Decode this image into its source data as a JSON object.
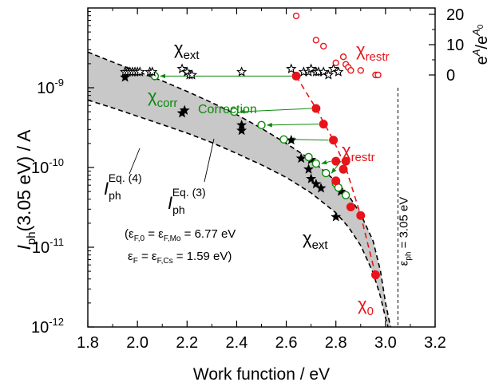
{
  "chart_data": {
    "type": "scatter",
    "xlabel": "Work function / eV",
    "ylabel": {
      "italic": "I",
      "sub": "ph",
      "rest": "(3.05 eV) / A"
    },
    "xlim": [
      1.8,
      3.2
    ],
    "ylim": [
      1e-12,
      1e-08
    ],
    "yscale": "log",
    "xticks": [
      "1.8",
      "2.0",
      "2.2",
      "2.4",
      "2.6",
      "2.8",
      "3.0",
      "3.2"
    ],
    "yticks": [
      {
        "value": 1e-12,
        "base": "10",
        "exp": "-12"
      },
      {
        "value": 1e-11,
        "base": "10",
        "exp": "-11"
      },
      {
        "value": 1e-10,
        "base": "10",
        "exp": "-10"
      },
      {
        "value": 1e-09,
        "base": "10",
        "exp": "-9"
      }
    ],
    "right_axis": {
      "label": {
        "base": "e",
        "sup1": "A",
        "mid": "/e",
        "sup2": "A",
        "sub2": "0"
      },
      "ylim": [
        -4.5,
        21
      ],
      "ticks": [
        "0",
        "10",
        "20"
      ],
      "tick_values": [
        0,
        10,
        20
      ]
    },
    "series": [
      {
        "name": "χ_ext",
        "label": {
          "base": "χ",
          "sub": "ext"
        },
        "marker": "star-filled",
        "color": "#000000",
        "points": [
          {
            "x": 1.95,
            "y": 1.35e-09
          },
          {
            "x": 2.18,
            "y": 4.8e-10
          },
          {
            "x": 2.19,
            "y": 5.2e-10
          },
          {
            "x": 2.42,
            "y": 3.4e-10
          },
          {
            "x": 2.42,
            "y": 2.9e-10
          },
          {
            "x": 2.62,
            "y": 2.2e-10
          },
          {
            "x": 2.66,
            "y": 1.3e-10
          },
          {
            "x": 2.69,
            "y": 9.5e-11
          },
          {
            "x": 2.7,
            "y": 7.2e-11
          },
          {
            "x": 2.72,
            "y": 6.2e-11
          },
          {
            "x": 2.74,
            "y": 5.5e-11
          },
          {
            "x": 2.8,
            "y": 2.4e-11
          },
          {
            "x": 2.82,
            "y": 5e-11
          },
          {
            "x": 2.7,
            "y": 1.25e-10
          }
        ]
      },
      {
        "name": "χ_corr",
        "label": {
          "base": "χ",
          "sub": "corr"
        },
        "marker": "circle-open",
        "color": "#0a8a0a",
        "points": [
          {
            "x": 2.07,
            "y": 1.4e-09
          },
          {
            "x": 2.39,
            "y": 5e-10
          },
          {
            "x": 2.5,
            "y": 3.4e-10
          },
          {
            "x": 2.59,
            "y": 2.25e-10
          },
          {
            "x": 2.69,
            "y": 1.35e-10
          },
          {
            "x": 2.72,
            "y": 1.12e-10
          },
          {
            "x": 2.76,
            "y": 8.5e-11
          },
          {
            "x": 2.8,
            "y": 6.3e-11
          },
          {
            "x": 2.81,
            "y": 5.6e-11
          },
          {
            "x": 2.84,
            "y": 4.5e-11
          }
        ]
      },
      {
        "name": "χ_restr",
        "label": {
          "base": "χ",
          "sub": "restr"
        },
        "marker": "circle-filled",
        "color": "#e8141a",
        "points": [
          {
            "x": 2.64,
            "y": 1.4e-09
          },
          {
            "x": 2.72,
            "y": 5.5e-10
          },
          {
            "x": 2.75,
            "y": 3.5e-10
          },
          {
            "x": 2.79,
            "y": 2.2e-10
          },
          {
            "x": 2.8,
            "y": 1.2e-10
          },
          {
            "x": 2.83,
            "y": 9.5e-11
          },
          {
            "x": 2.84,
            "y": 1.2e-10
          },
          {
            "x": 2.8,
            "y": 6.8e-11
          },
          {
            "x": 2.86,
            "y": 3.2e-11
          },
          {
            "x": 2.9,
            "y": 2.5e-11
          },
          {
            "x": 2.96,
            "y": 4.5e-12
          }
        ]
      },
      {
        "name": "χ_ext e^A/e^A0",
        "axis": "right",
        "marker": "star-open",
        "color": "#000000",
        "points": [
          {
            "x": 1.95,
            "y": 1
          },
          {
            "x": 1.96,
            "y": 1
          },
          {
            "x": 1.97,
            "y": 1
          },
          {
            "x": 1.98,
            "y": 1
          },
          {
            "x": 1.99,
            "y": 1
          },
          {
            "x": 2.0,
            "y": 1
          },
          {
            "x": 2.01,
            "y": 1
          },
          {
            "x": 2.05,
            "y": 1
          },
          {
            "x": 2.06,
            "y": 1
          },
          {
            "x": 2.18,
            "y": 2
          },
          {
            "x": 2.2,
            "y": 1
          },
          {
            "x": 2.21,
            "y": 0
          },
          {
            "x": 2.22,
            "y": 0
          },
          {
            "x": 2.42,
            "y": 1
          },
          {
            "x": 2.62,
            "y": 2
          },
          {
            "x": 2.67,
            "y": 1
          },
          {
            "x": 2.69,
            "y": 1
          },
          {
            "x": 2.7,
            "y": 2
          },
          {
            "x": 2.72,
            "y": 1
          },
          {
            "x": 2.73,
            "y": 1
          },
          {
            "x": 2.75,
            "y": 1
          },
          {
            "x": 2.77,
            "y": 0
          },
          {
            "x": 2.79,
            "y": 2
          },
          {
            "x": 2.81,
            "y": 1
          }
        ]
      },
      {
        "name": "χ_restr e^A/e^A0",
        "axis": "right",
        "marker": "circle-open",
        "color": "#e8141a",
        "points": [
          {
            "x": 2.64,
            "y": 19.5
          },
          {
            "x": 2.72,
            "y": 11.5
          },
          {
            "x": 2.75,
            "y": 9.5
          },
          {
            "x": 2.8,
            "y": 4
          },
          {
            "x": 2.83,
            "y": 6
          },
          {
            "x": 2.84,
            "y": 3.5
          },
          {
            "x": 2.85,
            "y": 2.5
          },
          {
            "x": 2.86,
            "y": 1.5
          },
          {
            "x": 2.9,
            "y": 1.5
          },
          {
            "x": 2.96,
            "y": 0
          },
          {
            "x": 2.97,
            "y": 0
          }
        ]
      }
    ],
    "bands": [
      {
        "name": "I_ph^Eq.(3)",
        "label": {
          "italic": "I",
          "sub": "ph",
          "sup": "Eq. (3)"
        },
        "line": "dashed",
        "points": [
          {
            "x": 1.8,
            "y": 2.8e-09
          },
          {
            "x": 1.9,
            "y": 2.1e-09
          },
          {
            "x": 2.0,
            "y": 1.6e-09
          },
          {
            "x": 2.1,
            "y": 1.22e-09
          },
          {
            "x": 2.2,
            "y": 9e-10
          },
          {
            "x": 2.3,
            "y": 6.5e-10
          },
          {
            "x": 2.4,
            "y": 4.6e-10
          },
          {
            "x": 2.5,
            "y": 3.1e-10
          },
          {
            "x": 2.6,
            "y": 2e-10
          },
          {
            "x": 2.7,
            "y": 1.25e-10
          },
          {
            "x": 2.8,
            "y": 6.7e-11
          },
          {
            "x": 2.85,
            "y": 4.5e-11
          },
          {
            "x": 2.9,
            "y": 2.6e-11
          },
          {
            "x": 2.95,
            "y": 1.2e-11
          },
          {
            "x": 2.98,
            "y": 5e-12
          },
          {
            "x": 3.0,
            "y": 2e-12
          },
          {
            "x": 3.02,
            "y": 1e-12
          }
        ]
      },
      {
        "name": "I_ph^Eq.(4)",
        "label": {
          "italic": "I",
          "sub": "ph",
          "sup": "Eq. (4)"
        },
        "line": "dashed",
        "points": [
          {
            "x": 1.8,
            "y": 7e-10
          },
          {
            "x": 1.9,
            "y": 5.6e-10
          },
          {
            "x": 2.0,
            "y": 4.4e-10
          },
          {
            "x": 2.1,
            "y": 3.45e-10
          },
          {
            "x": 2.2,
            "y": 2.7e-10
          },
          {
            "x": 2.3,
            "y": 2.05e-10
          },
          {
            "x": 2.4,
            "y": 1.5e-10
          },
          {
            "x": 2.5,
            "y": 1.08e-10
          },
          {
            "x": 2.6,
            "y": 7.5e-11
          },
          {
            "x": 2.7,
            "y": 4.8e-11
          },
          {
            "x": 2.8,
            "y": 2.7e-11
          },
          {
            "x": 2.85,
            "y": 1.8e-11
          },
          {
            "x": 2.9,
            "y": 1.05e-11
          },
          {
            "x": 2.95,
            "y": 4.8e-12
          },
          {
            "x": 2.98,
            "y": 2.4e-12
          },
          {
            "x": 3.0,
            "y": 1.3e-12
          },
          {
            "x": 3.01,
            "y": 1e-12
          }
        ]
      }
    ],
    "fit_line": {
      "color": "#e8141a",
      "style": "dashed",
      "points": [
        {
          "x": 2.64,
          "y": 1.4e-09
        },
        {
          "x": 2.72,
          "y": 5.5e-10
        },
        {
          "x": 2.79,
          "y": 2.2e-10
        },
        {
          "x": 2.84,
          "y": 1e-10
        },
        {
          "x": 2.9,
          "y": 2.5e-11
        },
        {
          "x": 2.96,
          "y": 4.5e-12
        }
      ]
    },
    "vline": {
      "x": 3.05,
      "label": "ε",
      "label_sub": "ph",
      "label_rest": " = 3.05 eV",
      "style": "dashed"
    },
    "corrections": [
      {
        "from": {
          "x": 2.64,
          "y": 1.4e-09
        },
        "to": {
          "x": 2.07,
          "y": 1.4e-09
        }
      },
      {
        "from": {
          "x": 2.72,
          "y": 5.5e-10
        },
        "to": {
          "x": 2.39,
          "y": 5e-10
        }
      },
      {
        "from": {
          "x": 2.75,
          "y": 3.5e-10
        },
        "to": {
          "x": 2.5,
          "y": 3.4e-10
        }
      },
      {
        "from": {
          "x": 2.79,
          "y": 2.2e-10
        },
        "to": {
          "x": 2.59,
          "y": 2.25e-10
        }
      },
      {
        "from": {
          "x": 2.8,
          "y": 1.2e-10
        },
        "to": {
          "x": 2.72,
          "y": 1.12e-10
        }
      },
      {
        "from": {
          "x": 2.84,
          "y": 1.2e-10
        },
        "to": {
          "x": 2.76,
          "y": 8.5e-11
        }
      }
    ],
    "annotations": {
      "correction": "Correction",
      "chi_ext_top": {
        "base": "χ",
        "sub": "ext"
      },
      "chi_restr_top": {
        "base": "χ",
        "sub": "restr"
      },
      "chi_corr": {
        "base": "χ",
        "sub": "corr"
      },
      "chi_restr_mid": {
        "base": "χ",
        "sub": "restr"
      },
      "chi_ext_low": {
        "base": "χ",
        "sub": "ext"
      },
      "chi_0": {
        "base": "χ",
        "sub": "0"
      },
      "eq1": {
        "pre": "(ε",
        "s1": "F,0",
        "m1": " = ε",
        "s2": "F,Mo",
        "post": " = 6.77 eV"
      },
      "eq2": {
        "pre": "ε",
        "s1": "F",
        "m1": " = ε",
        "s2": "F,Cs",
        "post": " = 1.59 eV)"
      }
    },
    "colors": {
      "red": "#e8141a",
      "green": "#0a8a0a",
      "band": "#c8c8c8",
      "black": "#000000"
    }
  }
}
